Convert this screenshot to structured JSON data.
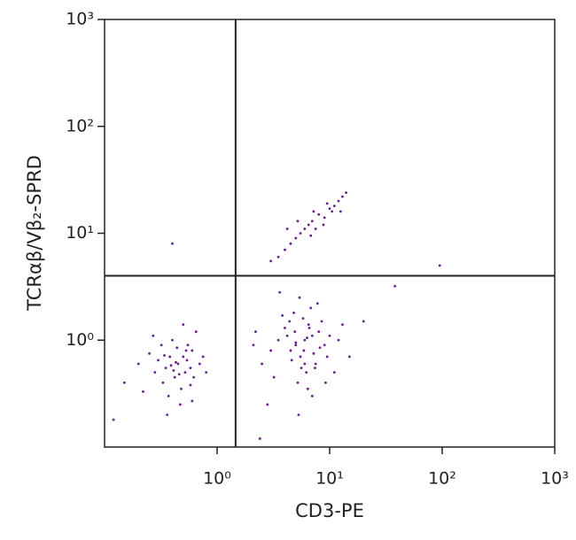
{
  "chart_data": {
    "type": "scatter",
    "xlabel": "CD3-PE",
    "ylabel": "TCRαβ/Vβ₂-SPRD",
    "xscale": "log",
    "yscale": "log",
    "xlim": [
      0.1,
      1000
    ],
    "ylim": [
      0.1,
      1000
    ],
    "xticks": [
      {
        "value": 1,
        "label": "10⁰"
      },
      {
        "value": 10,
        "label": "10¹"
      },
      {
        "value": 100,
        "label": "10²"
      },
      {
        "value": 1000,
        "label": "10³"
      }
    ],
    "yticks": [
      {
        "value": 1,
        "label": "10⁰"
      },
      {
        "value": 10,
        "label": "10¹"
      },
      {
        "value": 100,
        "label": "10²"
      },
      {
        "value": 1000,
        "label": "10³"
      }
    ],
    "gates": {
      "x": 1.46,
      "y": 4.0
    },
    "color": "#6a1b9a",
    "x": [
      0.45,
      0.38,
      0.52,
      0.3,
      0.6,
      0.42,
      0.35,
      0.55,
      0.25,
      0.7,
      0.48,
      0.4,
      0.33,
      0.58,
      0.28,
      0.5,
      0.62,
      0.44,
      0.37,
      0.2,
      0.65,
      0.47,
      0.32,
      0.54,
      0.41,
      0.15,
      0.75,
      0.5,
      0.36,
      0.43,
      0.58,
      0.27,
      0.46,
      0.39,
      0.6,
      0.22,
      0.53,
      0.34,
      0.8,
      0.12,
      6,
      5,
      7,
      4.5,
      8,
      5.5,
      6.5,
      3.5,
      9,
      4,
      7.5,
      5.8,
      6.2,
      3,
      10,
      4.8,
      5.2,
      7.2,
      8.5,
      2.5,
      12,
      6.8,
      4.2,
      5.6,
      3.8,
      9.5,
      6.4,
      2.2,
      7.8,
      5,
      11,
      4.6,
      6.6,
      3.2,
      8.2,
      5.4,
      7,
      4.4,
      6,
      2.8,
      13,
      5.9,
      6.3,
      3.6,
      9.2,
      4.9,
      7.4,
      15,
      2.1,
      5.3,
      3.5,
      4,
      4.5,
      5,
      5.5,
      6,
      6.5,
      7,
      7.5,
      8,
      9,
      10,
      11,
      12,
      13,
      5.2,
      6.8,
      8.8,
      10.5,
      4.2,
      3,
      7.2,
      9.5,
      12.5,
      14,
      0.4,
      95,
      38,
      20,
      2.4
    ],
    "values": [
      0.6,
      0.7,
      0.5,
      0.65,
      0.8,
      0.45,
      0.55,
      0.9,
      0.75,
      0.6,
      0.35,
      1.0,
      0.4,
      0.55,
      0.5,
      0.7,
      0.45,
      0.85,
      0.3,
      0.6,
      1.2,
      0.25,
      0.9,
      0.65,
      0.52,
      0.4,
      0.7,
      1.4,
      0.2,
      0.62,
      0.38,
      1.1,
      0.48,
      0.58,
      0.27,
      0.33,
      0.8,
      0.72,
      0.5,
      0.18,
      1.0,
      0.9,
      1.1,
      0.8,
      1.2,
      0.7,
      1.4,
      1.0,
      0.9,
      1.3,
      0.6,
      1.6,
      0.5,
      0.8,
      1.1,
      1.8,
      0.4,
      0.75,
      1.5,
      0.6,
      1.0,
      2.0,
      1.1,
      0.55,
      1.7,
      0.7,
      0.35,
      1.2,
      2.2,
      0.95,
      0.5,
      0.65,
      1.3,
      0.45,
      0.85,
      2.5,
      0.3,
      1.5,
      0.6,
      0.25,
      1.4,
      0.8,
      1.05,
      2.8,
      0.4,
      1.2,
      0.55,
      0.7,
      0.9,
      0.2,
      6,
      7,
      8,
      9,
      10,
      11,
      12,
      13,
      11,
      15,
      14,
      17,
      18,
      20,
      22,
      13,
      9.5,
      12,
      16,
      11,
      5.5,
      16,
      19,
      16,
      24,
      8,
      5,
      3.2,
      1.5,
      0.12
    ]
  }
}
